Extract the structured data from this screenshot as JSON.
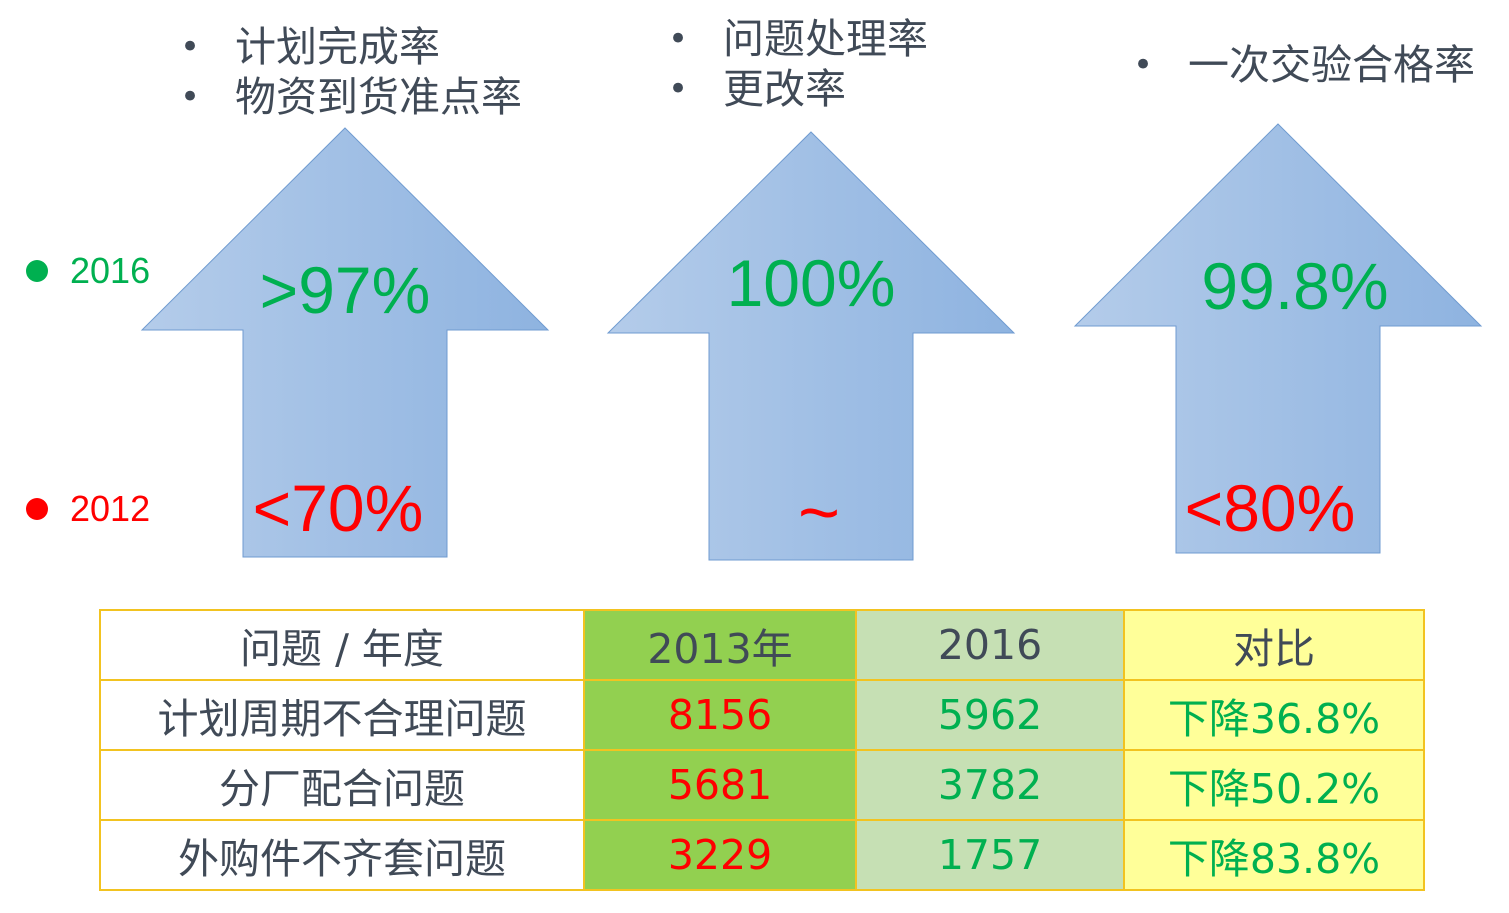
{
  "colors": {
    "red": "#ff0000",
    "green": "#00b050",
    "text": "#404a57",
    "arrow_light": "#b4ccea",
    "arrow_dark": "#8eb3e0",
    "border": "#f2c320"
  },
  "legend": [
    {
      "label": "2016",
      "color": "#00b050"
    },
    {
      "label": "2012",
      "color": "#ff0000"
    }
  ],
  "columns": [
    {
      "bullets": [
        "计划完成率",
        "物资到货准点率"
      ],
      "value_2016": ">97%",
      "value_2012": "<70%"
    },
    {
      "bullets": [
        "问题处理率",
        "更改率"
      ],
      "value_2016": "100%",
      "value_2012": "~"
    },
    {
      "bullets": [
        "一次交验合格率"
      ],
      "value_2016": "99.8%",
      "value_2012": "<80%"
    }
  ],
  "bullet_symbol": "•",
  "table": {
    "headers": [
      "问题 / 年度",
      "2013年",
      "2016",
      "对比"
    ],
    "rows": [
      [
        "计划周期不合理问题",
        "8156",
        "5962",
        "下降36.8%"
      ],
      [
        "分厂配合问题",
        "5681",
        "3782",
        "下降50.2%"
      ],
      [
        "外购件不齐套问题",
        "3229",
        "1757",
        "下降83.8%"
      ]
    ]
  }
}
